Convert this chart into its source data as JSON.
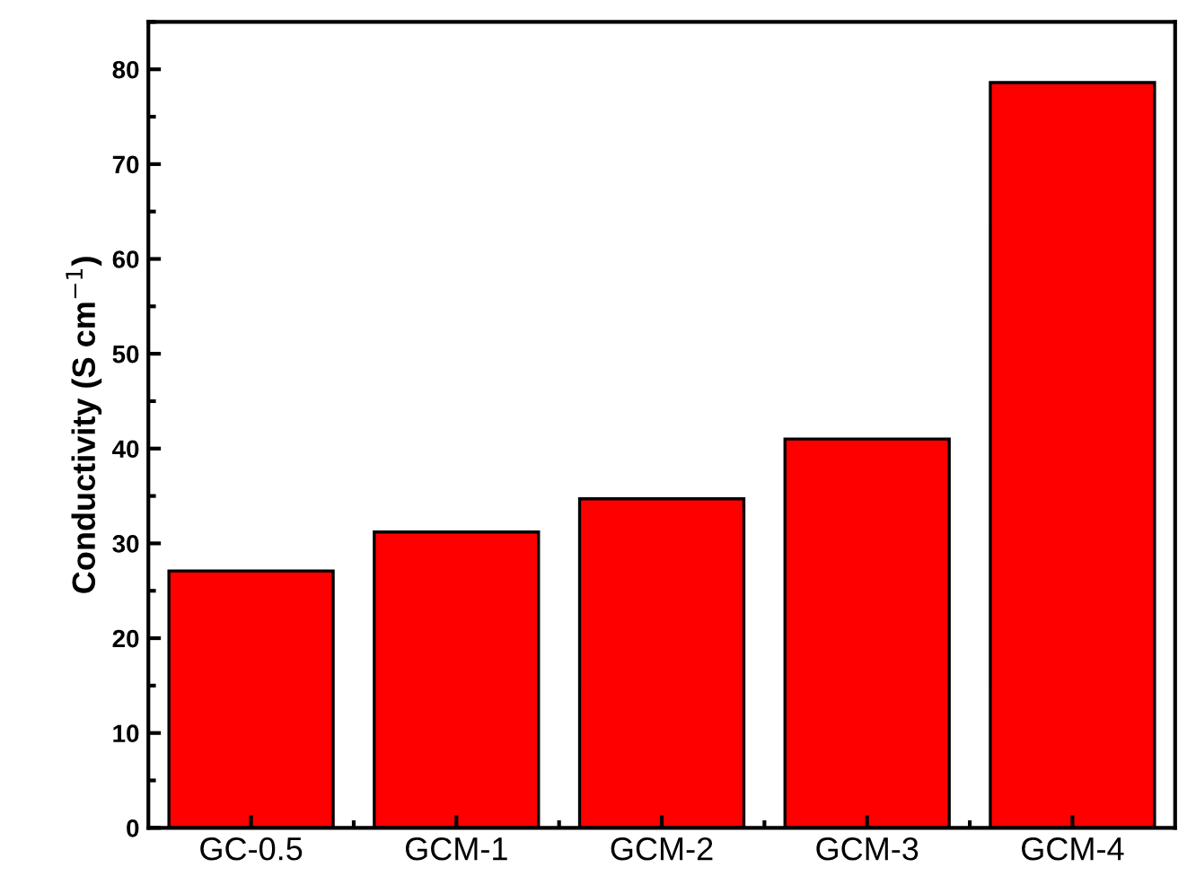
{
  "chart_data": {
    "type": "bar",
    "ylabel": "Conductivity (S cm$^{−1}$)",
    "categories": [
      "GC-0.5",
      "GCM-1",
      "GCM-2",
      "GCM-3",
      "GCM-4"
    ],
    "values": [
      27.1,
      31.2,
      34.7,
      41.0,
      78.6
    ],
    "color": "#ff0000",
    "ylim": [
      0,
      85
    ],
    "yticks": [
      0,
      10,
      20,
      30,
      40,
      50,
      60,
      70,
      80
    ],
    "grid": false,
    "legend": false
  }
}
